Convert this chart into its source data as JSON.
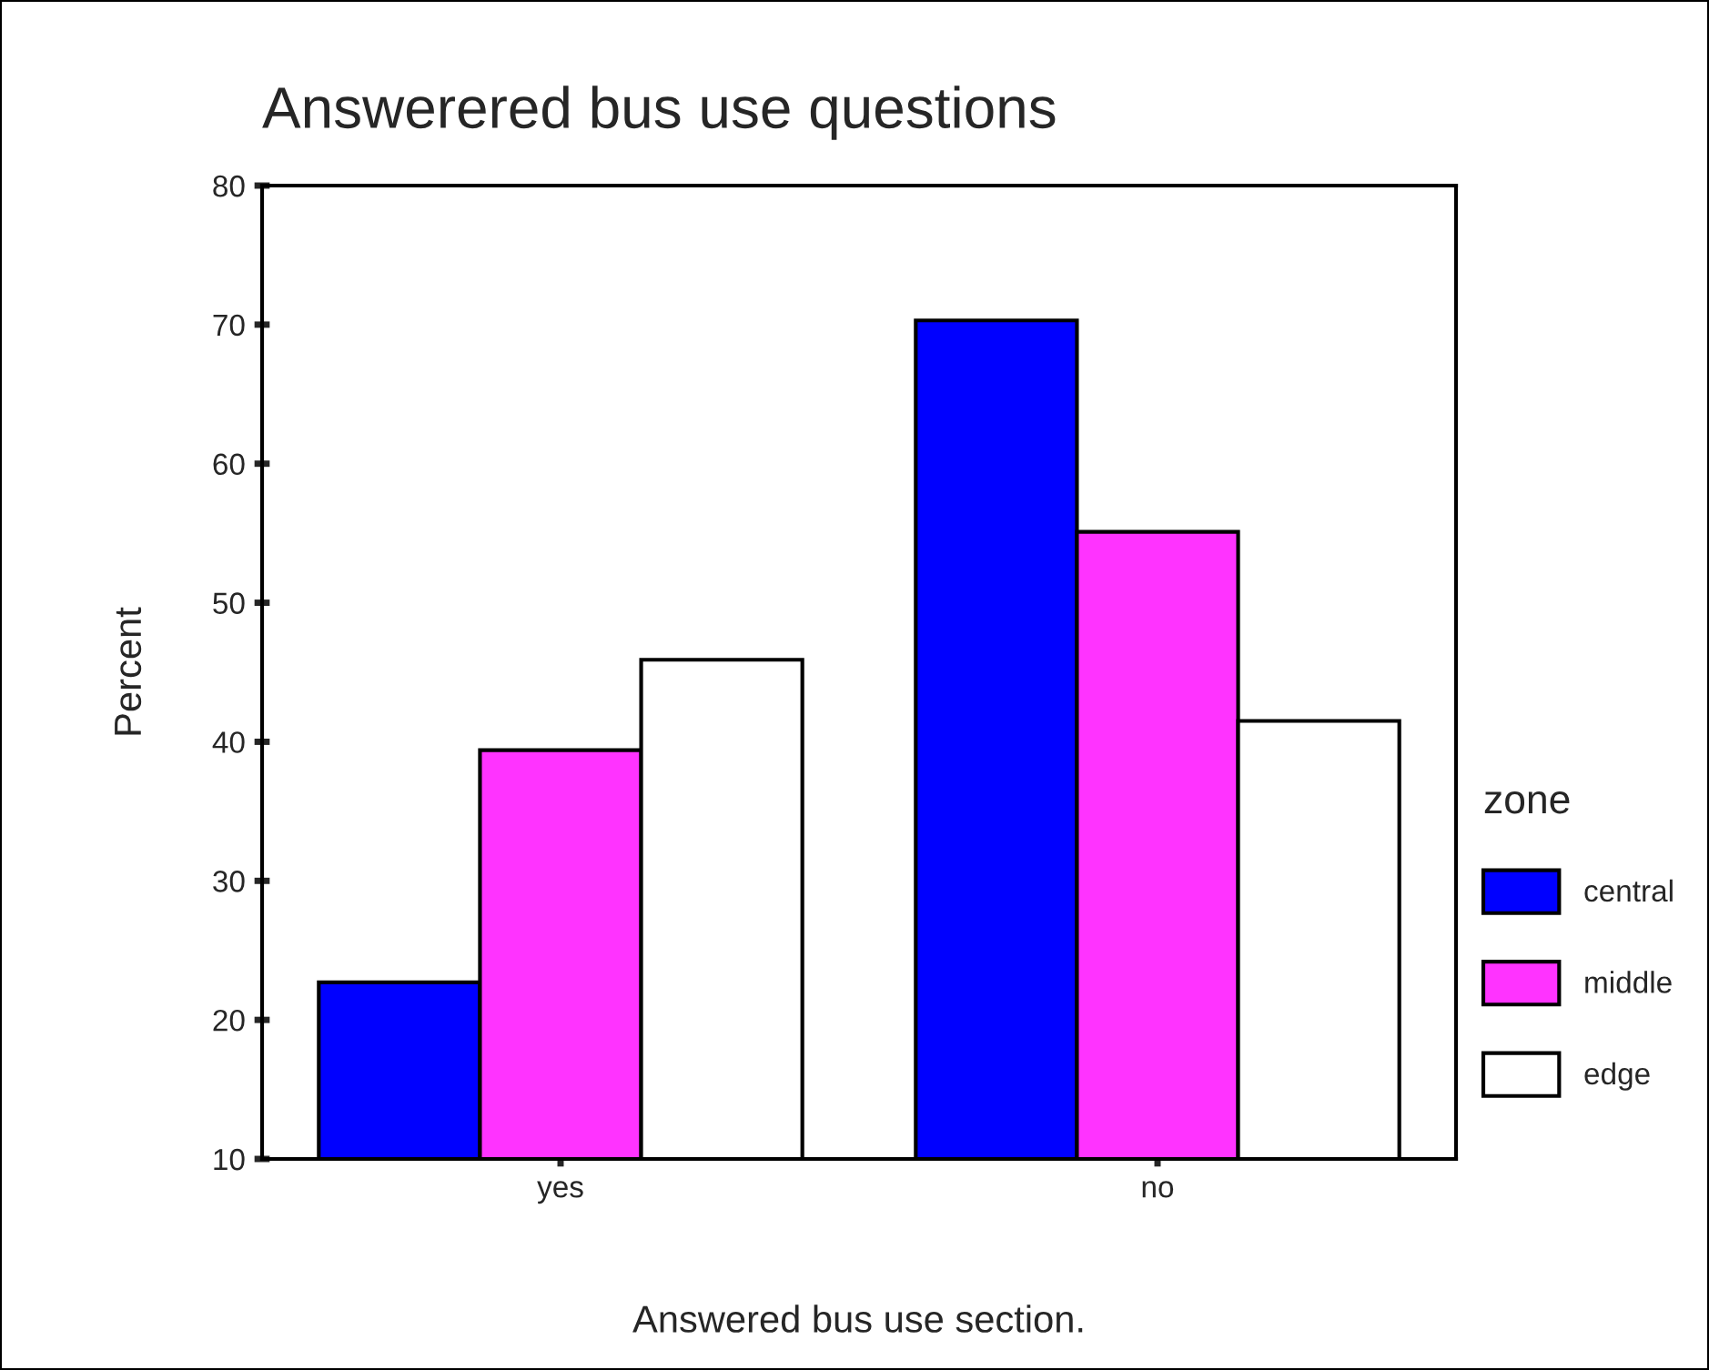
{
  "chart_data": {
    "type": "bar",
    "title": "Answerered bus use questions",
    "xlabel": "Answered bus use section.",
    "ylabel": "Percent",
    "legend_title": "zone",
    "categories": [
      "yes",
      "no"
    ],
    "series": [
      {
        "name": "central",
        "color": "#0000ff",
        "values": [
          22.7,
          70.3
        ]
      },
      {
        "name": "middle",
        "color": "#ff33ff",
        "values": [
          39.4,
          55.1
        ]
      },
      {
        "name": "edge",
        "color": "#ffffff",
        "values": [
          45.9,
          41.5
        ]
      }
    ],
    "ylim": [
      10,
      80
    ],
    "yticks": [
      10,
      20,
      30,
      40,
      50,
      60,
      70,
      80
    ],
    "grid": false,
    "legend": "right"
  }
}
